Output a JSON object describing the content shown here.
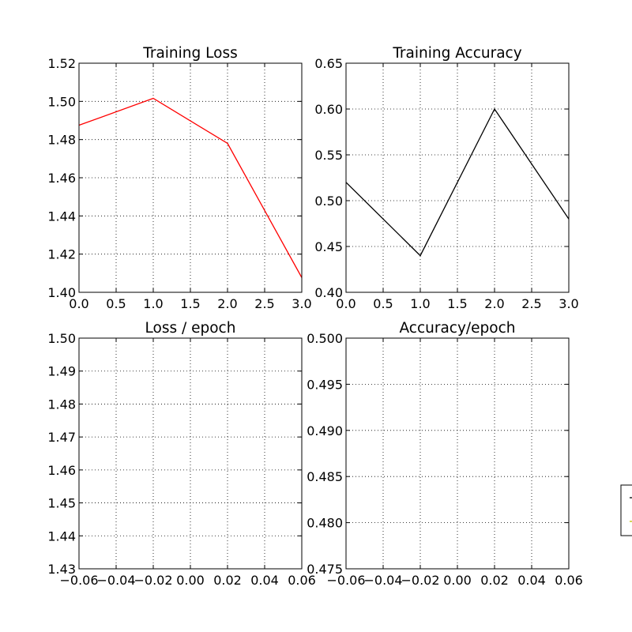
{
  "chart_data": [
    {
      "type": "line",
      "title": "Training Loss",
      "xlabel": "",
      "ylabel": "",
      "xlim": [
        0.0,
        3.0
      ],
      "ylim": [
        1.4,
        1.52
      ],
      "xticks": [
        "0.0",
        "0.5",
        "1.0",
        "1.5",
        "2.0",
        "2.5",
        "3.0"
      ],
      "yticks": [
        "1.40",
        "1.42",
        "1.44",
        "1.46",
        "1.48",
        "1.50",
        "1.52"
      ],
      "grid": true,
      "series": [
        {
          "color": "#ff0000",
          "x": [
            0,
            1,
            2,
            3
          ],
          "y": [
            1.4875,
            1.5016,
            1.478,
            1.4077
          ]
        }
      ]
    },
    {
      "type": "line",
      "title": "Training Accuracy",
      "xlabel": "",
      "ylabel": "",
      "xlim": [
        0.0,
        3.0
      ],
      "ylim": [
        0.4,
        0.65
      ],
      "xticks": [
        "0.0",
        "0.5",
        "1.0",
        "1.5",
        "2.0",
        "2.5",
        "3.0"
      ],
      "yticks": [
        "0.40",
        "0.45",
        "0.50",
        "0.55",
        "0.60",
        "0.65"
      ],
      "grid": true,
      "series": [
        {
          "color": "#000000",
          "x": [
            0,
            1,
            2,
            3
          ],
          "y": [
            0.52,
            0.44,
            0.6,
            0.48
          ]
        }
      ]
    },
    {
      "type": "line",
      "title": "Loss / epoch",
      "xlabel": "",
      "ylabel": "",
      "xlim": [
        -0.06,
        0.06
      ],
      "ylim": [
        1.43,
        1.5
      ],
      "xticks": [
        "−0.06",
        "−0.04",
        "−0.02",
        "0.00",
        "0.02",
        "0.04",
        "0.06"
      ],
      "yticks": [
        "1.43",
        "1.44",
        "1.45",
        "1.46",
        "1.47",
        "1.48",
        "1.49",
        "1.50"
      ],
      "grid": true,
      "series": []
    },
    {
      "type": "line",
      "title": "Accuracy/epoch",
      "xlabel": "",
      "ylabel": "",
      "xlim": [
        -0.06,
        0.06
      ],
      "ylim": [
        0.475,
        0.5
      ],
      "xticks": [
        "−0.06",
        "−0.04",
        "−0.02",
        "0.00",
        "0.02",
        "0.04",
        "0.06"
      ],
      "yticks": [
        "0.475",
        "0.480",
        "0.485",
        "0.490",
        "0.495",
        "0.500"
      ],
      "grid": true,
      "series": []
    }
  ],
  "legend": {
    "placement": "right, partially cut off",
    "entries": [
      {
        "color": "#000000"
      },
      {
        "color": "#bfbf00"
      }
    ]
  }
}
